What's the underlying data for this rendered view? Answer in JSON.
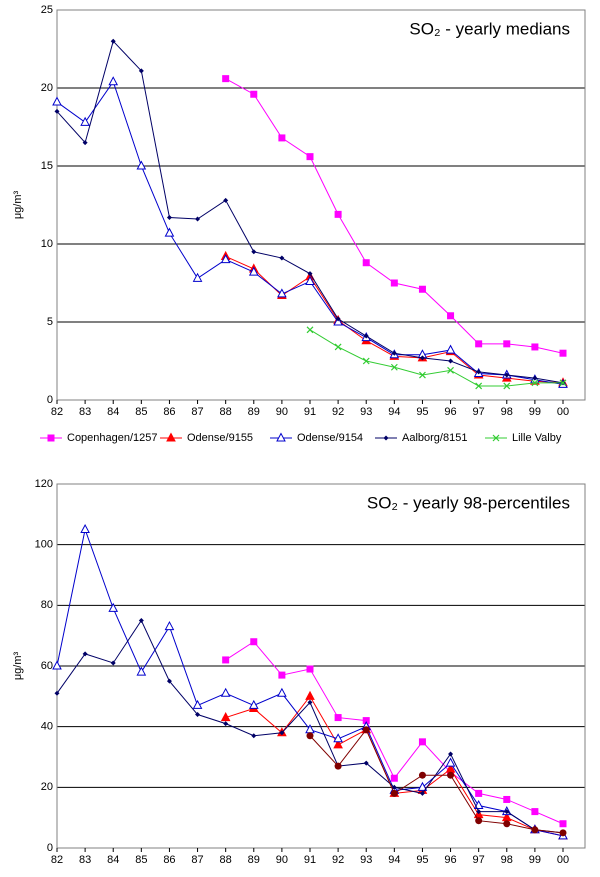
{
  "chart_data": [
    {
      "type": "line",
      "title": "SO₂ - yearly medians",
      "y_label": "μg/m³",
      "categories": [
        "82",
        "83",
        "84",
        "85",
        "86",
        "87",
        "88",
        "89",
        "90",
        "91",
        "92",
        "93",
        "94",
        "95",
        "96",
        "97",
        "98",
        "99",
        "00"
      ],
      "ylim": [
        0,
        25
      ],
      "yticks": [
        0,
        5,
        10,
        15,
        20,
        25
      ],
      "grid": true,
      "legend": "bottom",
      "series": [
        {
          "name": "Copenhagen/1257",
          "color": "#ff00ff",
          "marker": "square",
          "values": [
            null,
            null,
            null,
            null,
            null,
            null,
            20.6,
            19.6,
            16.8,
            15.6,
            11.9,
            8.8,
            7.5,
            7.1,
            5.4,
            3.6,
            3.6,
            3.4,
            3.0
          ]
        },
        {
          "name": "Odense/9155",
          "color": "#ff0000",
          "marker": "triangle",
          "values": [
            null,
            null,
            null,
            null,
            null,
            null,
            9.2,
            8.4,
            6.7,
            7.9,
            5.1,
            3.8,
            2.8,
            2.7,
            3.1,
            1.6,
            1.4,
            1.2,
            1.1
          ]
        },
        {
          "name": "Odense/9154",
          "color": "#0000cc",
          "marker": "open-triangle",
          "values": [
            19.1,
            17.8,
            20.4,
            15.0,
            10.7,
            7.8,
            9.0,
            8.2,
            6.8,
            7.6,
            5.0,
            4.0,
            2.9,
            2.9,
            3.2,
            1.7,
            1.6,
            1.3,
            1.0
          ]
        },
        {
          "name": "Aalborg/8151",
          "color": "#000066",
          "marker": "diamond",
          "values": [
            18.5,
            16.5,
            23.0,
            21.1,
            11.7,
            11.6,
            12.8,
            9.5,
            9.1,
            8.1,
            5.2,
            4.1,
            3.0,
            2.7,
            2.5,
            1.8,
            1.6,
            1.4,
            1.1
          ]
        },
        {
          "name": "Lille Valby",
          "color": "#33cc33",
          "marker": "x",
          "values": [
            null,
            null,
            null,
            null,
            null,
            null,
            null,
            null,
            null,
            4.5,
            3.4,
            2.5,
            2.1,
            1.6,
            1.9,
            0.9,
            0.9,
            1.1,
            1.1
          ]
        }
      ]
    },
    {
      "type": "line",
      "title": "SO₂ - yearly 98-percentiles",
      "y_label": "μg/m³",
      "categories": [
        "82",
        "83",
        "84",
        "85",
        "86",
        "87",
        "88",
        "89",
        "90",
        "91",
        "92",
        "93",
        "94",
        "95",
        "96",
        "97",
        "98",
        "99",
        "00"
      ],
      "ylim": [
        0,
        120
      ],
      "yticks": [
        0,
        20,
        40,
        60,
        80,
        100,
        120
      ],
      "grid": true,
      "series": [
        {
          "name": "Copenhagen/1257",
          "color": "#ff00ff",
          "marker": "square",
          "values": [
            null,
            null,
            null,
            null,
            null,
            null,
            62,
            68,
            57,
            59,
            43,
            42,
            23,
            35,
            25,
            18,
            16,
            12,
            8
          ]
        },
        {
          "name": "Odense/9155",
          "color": "#ff0000",
          "marker": "triangle",
          "values": [
            null,
            null,
            null,
            null,
            null,
            null,
            43,
            46,
            38,
            50,
            34,
            39,
            18,
            19,
            26,
            11,
            10,
            6,
            4
          ]
        },
        {
          "name": "Odense/9154",
          "color": "#0000cc",
          "marker": "open-triangle",
          "values": [
            60,
            105,
            79,
            58,
            73,
            47,
            51,
            47,
            51,
            39,
            36,
            40,
            19,
            20,
            28,
            14,
            12,
            6,
            4
          ]
        },
        {
          "name": "Aalborg/8151",
          "color": "#000066",
          "marker": "diamond",
          "values": [
            51,
            64,
            61,
            75,
            55,
            44,
            41,
            37,
            38,
            48,
            27,
            28,
            20,
            18,
            31,
            12,
            12,
            6,
            5
          ]
        },
        {
          "color": "#800000",
          "marker": "circle",
          "values": [
            null,
            null,
            null,
            null,
            null,
            null,
            null,
            null,
            null,
            37,
            27,
            39,
            18,
            24,
            24,
            9,
            8,
            6,
            5
          ]
        }
      ]
    }
  ]
}
